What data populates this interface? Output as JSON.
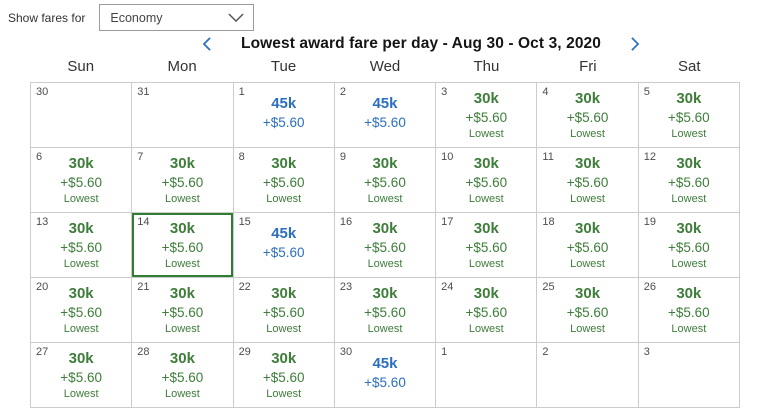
{
  "fare_filter": {
    "label": "Show fares for",
    "selected": "Economy"
  },
  "header": {
    "title": "Lowest award fare per day - Aug 30 - Oct 3, 2020"
  },
  "day_names": [
    "Sun",
    "Mon",
    "Tue",
    "Wed",
    "Thu",
    "Fri",
    "Sat"
  ],
  "colors": {
    "award_green": "#3e7d3a",
    "award_blue": "#2b6fbf",
    "selected_border": "#2e7d32",
    "grid_line": "#cccccc"
  },
  "weeks": [
    [
      {
        "day": "30"
      },
      {
        "day": "31"
      },
      {
        "day": "1",
        "fare": "45k",
        "fee": "+$5.60",
        "style": "blue"
      },
      {
        "day": "2",
        "fare": "45k",
        "fee": "+$5.60",
        "style": "blue"
      },
      {
        "day": "3",
        "fare": "30k",
        "fee": "+$5.60",
        "tag": "Lowest",
        "style": "green"
      },
      {
        "day": "4",
        "fare": "30k",
        "fee": "+$5.60",
        "tag": "Lowest",
        "style": "green"
      },
      {
        "day": "5",
        "fare": "30k",
        "fee": "+$5.60",
        "tag": "Lowest",
        "style": "green"
      }
    ],
    [
      {
        "day": "6",
        "fare": "30k",
        "fee": "+$5.60",
        "tag": "Lowest",
        "style": "green"
      },
      {
        "day": "7",
        "fare": "30k",
        "fee": "+$5.60",
        "tag": "Lowest",
        "style": "green"
      },
      {
        "day": "8",
        "fare": "30k",
        "fee": "+$5.60",
        "tag": "Lowest",
        "style": "green"
      },
      {
        "day": "9",
        "fare": "30k",
        "fee": "+$5.60",
        "tag": "Lowest",
        "style": "green"
      },
      {
        "day": "10",
        "fare": "30k",
        "fee": "+$5.60",
        "tag": "Lowest",
        "style": "green"
      },
      {
        "day": "11",
        "fare": "30k",
        "fee": "+$5.60",
        "tag": "Lowest",
        "style": "green"
      },
      {
        "day": "12",
        "fare": "30k",
        "fee": "+$5.60",
        "tag": "Lowest",
        "style": "green"
      }
    ],
    [
      {
        "day": "13",
        "fare": "30k",
        "fee": "+$5.60",
        "tag": "Lowest",
        "style": "green"
      },
      {
        "day": "14",
        "fare": "30k",
        "fee": "+$5.60",
        "tag": "Lowest",
        "style": "green",
        "selected": true
      },
      {
        "day": "15",
        "fare": "45k",
        "fee": "+$5.60",
        "style": "blue"
      },
      {
        "day": "16",
        "fare": "30k",
        "fee": "+$5.60",
        "tag": "Lowest",
        "style": "green"
      },
      {
        "day": "17",
        "fare": "30k",
        "fee": "+$5.60",
        "tag": "Lowest",
        "style": "green"
      },
      {
        "day": "18",
        "fare": "30k",
        "fee": "+$5.60",
        "tag": "Lowest",
        "style": "green"
      },
      {
        "day": "19",
        "fare": "30k",
        "fee": "+$5.60",
        "tag": "Lowest",
        "style": "green"
      }
    ],
    [
      {
        "day": "20",
        "fare": "30k",
        "fee": "+$5.60",
        "tag": "Lowest",
        "style": "green"
      },
      {
        "day": "21",
        "fare": "30k",
        "fee": "+$5.60",
        "tag": "Lowest",
        "style": "green"
      },
      {
        "day": "22",
        "fare": "30k",
        "fee": "+$5.60",
        "tag": "Lowest",
        "style": "green"
      },
      {
        "day": "23",
        "fare": "30k",
        "fee": "+$5.60",
        "tag": "Lowest",
        "style": "green"
      },
      {
        "day": "24",
        "fare": "30k",
        "fee": "+$5.60",
        "tag": "Lowest",
        "style": "green"
      },
      {
        "day": "25",
        "fare": "30k",
        "fee": "+$5.60",
        "tag": "Lowest",
        "style": "green"
      },
      {
        "day": "26",
        "fare": "30k",
        "fee": "+$5.60",
        "tag": "Lowest",
        "style": "green"
      }
    ],
    [
      {
        "day": "27",
        "fare": "30k",
        "fee": "+$5.60",
        "tag": "Lowest",
        "style": "green"
      },
      {
        "day": "28",
        "fare": "30k",
        "fee": "+$5.60",
        "tag": "Lowest",
        "style": "green"
      },
      {
        "day": "29",
        "fare": "30k",
        "fee": "+$5.60",
        "tag": "Lowest",
        "style": "green"
      },
      {
        "day": "30",
        "fare": "45k",
        "fee": "+$5.60",
        "style": "blue"
      },
      {
        "day": "1"
      },
      {
        "day": "2"
      },
      {
        "day": "3"
      }
    ]
  ]
}
